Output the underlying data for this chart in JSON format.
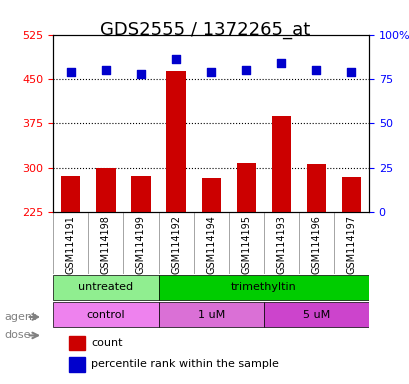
{
  "title": "GDS2555 / 1372265_at",
  "samples": [
    "GSM114191",
    "GSM114198",
    "GSM114199",
    "GSM114192",
    "GSM114194",
    "GSM114195",
    "GSM114193",
    "GSM114196",
    "GSM114197"
  ],
  "counts": [
    287,
    299,
    286,
    463,
    283,
    308,
    388,
    307,
    285
  ],
  "percentiles": [
    79,
    80,
    78,
    86,
    79,
    80,
    84,
    80,
    79
  ],
  "ylim_left": [
    225,
    525
  ],
  "ylim_right": [
    0,
    100
  ],
  "yticks_left": [
    225,
    300,
    375,
    450,
    525
  ],
  "yticks_right": [
    0,
    25,
    50,
    75,
    100
  ],
  "bar_color": "#cc0000",
  "dot_color": "#0000cc",
  "bar_bottom": 225,
  "agent_labels": [
    {
      "text": "untreated",
      "start": 0,
      "end": 3,
      "color": "#90ee90"
    },
    {
      "text": "trimethyltin",
      "start": 3,
      "end": 9,
      "color": "#00cc00"
    }
  ],
  "dose_labels": [
    {
      "text": "control",
      "start": 0,
      "end": 3,
      "color": "#ee82ee"
    },
    {
      "text": "1 uM",
      "start": 3,
      "end": 6,
      "color": "#da70d6"
    },
    {
      "text": "5 uM",
      "start": 6,
      "end": 9,
      "color": "#cc44cc"
    }
  ],
  "legend_count_color": "#cc0000",
  "legend_dot_color": "#0000cc",
  "title_fontsize": 13,
  "tick_label_fontsize": 8,
  "axis_label_fontsize": 9,
  "sample_label_fontsize": 7,
  "dotted_line_color": "#555555",
  "background_color": "#ffffff",
  "plot_bg_color": "#ffffff"
}
